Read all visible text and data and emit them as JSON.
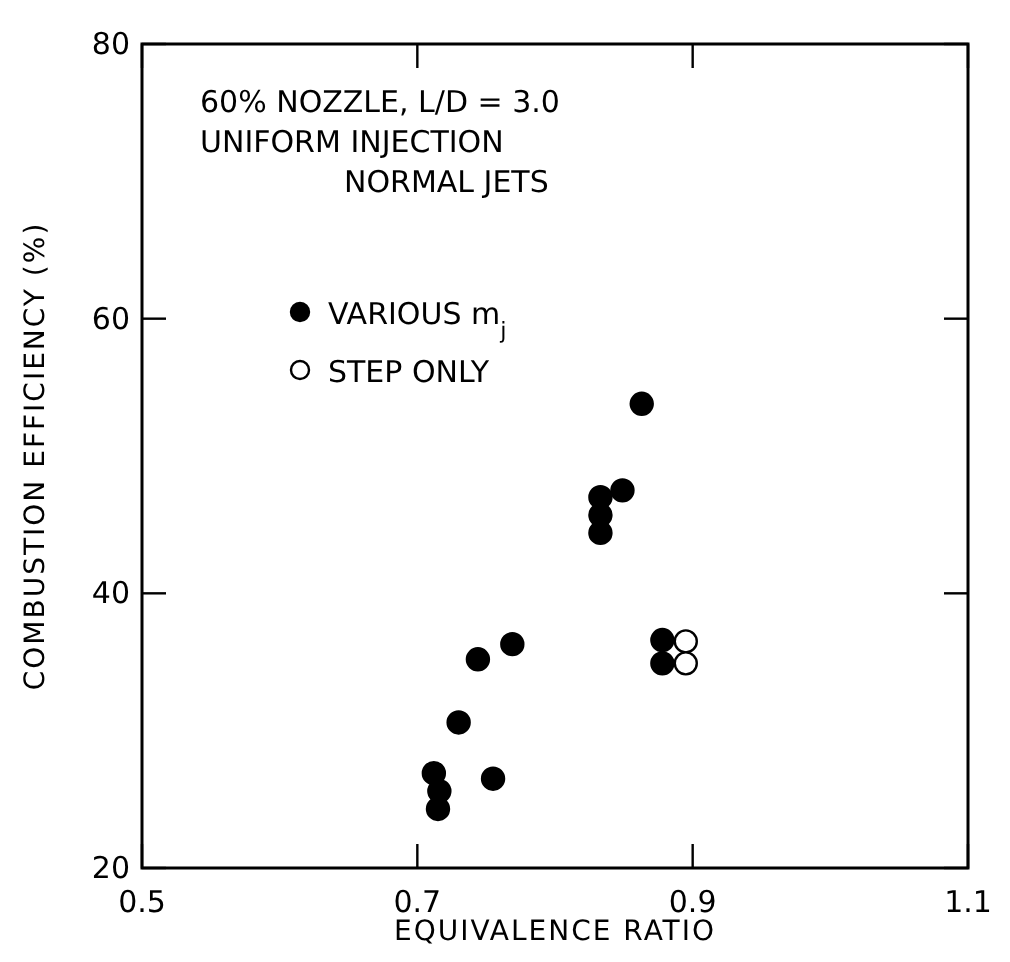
{
  "chart_data": {
    "type": "scatter",
    "xlabel": "EQUIVALENCE RATIO",
    "ylabel": "COMBUSTION EFFICIENCY (%)",
    "annotations": [
      "60% NOZZLE, L/D = 3.0",
      "UNIFORM INJECTION",
      "NORMAL JETS"
    ],
    "xlim": [
      0.5,
      1.1
    ],
    "xticks": [
      0.5,
      0.7,
      0.9,
      {
        "value": 1.1,
        "label": "1.1"
      }
    ],
    "ylim": [
      20,
      80
    ],
    "yticks": [
      20,
      40,
      60,
      80
    ],
    "grid": false,
    "legend": "top left",
    "marker": "circle",
    "series": [
      {
        "name": "VARIOUS m$_{j}$",
        "color": "#000000",
        "x": [
          0.863,
          0.849,
          0.833,
          0.833,
          0.833,
          0.769,
          0.744,
          0.73,
          0.712,
          0.716,
          0.715,
          0.755,
          0.878,
          0.878
        ],
        "values": [
          53.8,
          47.5,
          47.0,
          45.7,
          44.4,
          36.3,
          35.2,
          30.6,
          26.9,
          25.6,
          24.3,
          26.5,
          36.6,
          34.9
        ]
      },
      {
        "name": "STEP ONLY",
        "color": "#ffffff",
        "x": [
          0.895,
          0.895
        ],
        "values": [
          36.5,
          34.9
        ]
      }
    ]
  }
}
